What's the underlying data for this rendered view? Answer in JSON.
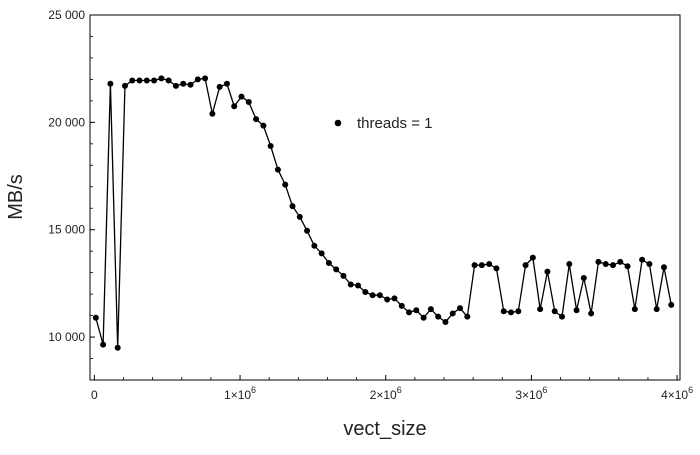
{
  "chart_data": {
    "type": "line",
    "title": "",
    "xlabel": "vect_size",
    "ylabel": "MB/s",
    "xlim": [
      -30000,
      4020000
    ],
    "ylim": [
      8000,
      25000
    ],
    "x_ticks": [
      {
        "value": 0,
        "label": "0",
        "exponent": ""
      },
      {
        "value": 1000000,
        "label": "1×10",
        "exponent": "6"
      },
      {
        "value": 2000000,
        "label": "2×10",
        "exponent": "6"
      },
      {
        "value": 3000000,
        "label": "3×10",
        "exponent": "6"
      },
      {
        "value": 4000000,
        "label": "4×10",
        "exponent": "6"
      }
    ],
    "y_ticks": [
      {
        "value": 10000,
        "label": "10 000"
      },
      {
        "value": 15000,
        "label": "15 000"
      },
      {
        "value": 20000,
        "label": "20 000"
      },
      {
        "value": 25000,
        "label": "25 000"
      }
    ],
    "grid": false,
    "legend_position": "upper-center",
    "series": [
      {
        "name": "threads = 1",
        "color": "#000000",
        "x": [
          10000,
          60000,
          110000,
          160000,
          210000,
          260000,
          310000,
          360000,
          410000,
          460000,
          510000,
          560000,
          610000,
          660000,
          710000,
          760000,
          810000,
          860000,
          910000,
          960000,
          1010000,
          1060000,
          1110000,
          1160000,
          1210000,
          1260000,
          1310000,
          1360000,
          1410000,
          1460000,
          1510000,
          1560000,
          1610000,
          1660000,
          1710000,
          1760000,
          1810000,
          1860000,
          1910000,
          1960000,
          2010000,
          2060000,
          2110000,
          2160000,
          2210000,
          2260000,
          2310000,
          2360000,
          2410000,
          2460000,
          2510000,
          2560000,
          2610000,
          2660000,
          2710000,
          2760000,
          2810000,
          2860000,
          2910000,
          2960000,
          3010000,
          3060000,
          3110000,
          3160000,
          3210000,
          3260000,
          3310000,
          3360000,
          3410000,
          3460000,
          3510000,
          3560000,
          3610000,
          3660000,
          3710000,
          3760000,
          3810000,
          3860000,
          3910000,
          3960000
        ],
        "y": [
          10900,
          9650,
          21800,
          9500,
          21700,
          21950,
          21950,
          21950,
          21950,
          22050,
          21950,
          21700,
          21800,
          21750,
          22000,
          22050,
          20400,
          21650,
          21800,
          20750,
          21200,
          20950,
          20150,
          19850,
          18900,
          17800,
          17100,
          16100,
          15600,
          14950,
          14250,
          13900,
          13450,
          13150,
          12850,
          12450,
          12400,
          12100,
          11950,
          11950,
          11750,
          11800,
          11450,
          11150,
          11250,
          10900,
          11300,
          10950,
          10700,
          11100,
          11350,
          10950,
          13350,
          13350,
          13400,
          13200,
          11200,
          11150,
          11200,
          13350,
          13700,
          11300,
          13050,
          11200,
          10950,
          13400,
          11250,
          12750,
          11100,
          13500,
          13400,
          13350,
          13500,
          13300,
          11300,
          13600,
          13400,
          11300,
          13250,
          11500
        ]
      }
    ]
  }
}
